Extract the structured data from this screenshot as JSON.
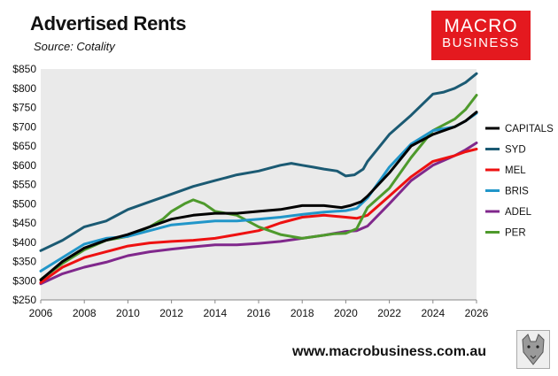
{
  "header": {
    "title": "Advertised Rents",
    "subtitle": "Source: Cotality"
  },
  "logo": {
    "line1": "MACRO",
    "line2": "BUSINESS"
  },
  "footer": {
    "url": "www.macrobusiness.com.au"
  },
  "colors": {
    "background_plot": "#eaeaea",
    "CAPITALS": "#000000",
    "SYD": "#1b5a73",
    "MEL": "#ee1111",
    "BRIS": "#2196c9",
    "ADEL": "#80288c",
    "PER": "#4e9a2c",
    "logo": "#e4191f"
  },
  "chart_data": {
    "type": "line",
    "title": "Advertised Rents",
    "xlabel": "",
    "ylabel": "",
    "xlim": [
      2006,
      2026
    ],
    "ylim": [
      250,
      850
    ],
    "x_ticks": [
      2006,
      2008,
      2010,
      2012,
      2014,
      2016,
      2018,
      2020,
      2022,
      2024,
      2026
    ],
    "y_ticks": [
      250,
      300,
      350,
      400,
      450,
      500,
      550,
      600,
      650,
      700,
      750,
      800,
      850
    ],
    "y_tick_labels": [
      "$250",
      "$300",
      "$350",
      "$400",
      "$450",
      "$500",
      "$550",
      "$600",
      "$650",
      "$700",
      "$750",
      "$800",
      "$850"
    ],
    "legend_position": "right",
    "grid": false,
    "series": [
      {
        "name": "CAPITALS",
        "x": [
          2006,
          2007,
          2008,
          2009,
          2010,
          2011,
          2012,
          2013,
          2014,
          2015,
          2016,
          2017,
          2018,
          2019,
          2019.8,
          2020.2,
          2020.7,
          2021,
          2022,
          2023,
          2024,
          2025,
          2025.5,
          2026
        ],
        "values": [
          302,
          350,
          385,
          405,
          420,
          440,
          460,
          470,
          475,
          475,
          480,
          485,
          495,
          495,
          490,
          495,
          505,
          520,
          580,
          650,
          680,
          700,
          715,
          738
        ]
      },
      {
        "name": "SYD",
        "x": [
          2006,
          2007,
          2008,
          2009,
          2010,
          2011,
          2012,
          2013,
          2014,
          2015,
          2016,
          2017,
          2017.5,
          2018,
          2018.5,
          2019,
          2019.6,
          2020,
          2020.4,
          2020.8,
          2021,
          2022,
          2023,
          2024,
          2024.5,
          2025,
          2025.5,
          2026
        ],
        "values": [
          378,
          405,
          440,
          455,
          485,
          505,
          525,
          545,
          560,
          575,
          585,
          600,
          605,
          600,
          595,
          590,
          585,
          572,
          575,
          590,
          610,
          680,
          730,
          785,
          790,
          800,
          815,
          838
        ]
      },
      {
        "name": "MEL",
        "x": [
          2006,
          2007,
          2008,
          2009,
          2010,
          2011,
          2012,
          2013,
          2014,
          2015,
          2016,
          2017,
          2018,
          2019,
          2020,
          2020.5,
          2021,
          2022,
          2023,
          2024,
          2025,
          2025.5,
          2026
        ],
        "values": [
          295,
          335,
          360,
          375,
          390,
          398,
          402,
          405,
          410,
          420,
          430,
          450,
          465,
          470,
          465,
          462,
          470,
          520,
          570,
          610,
          625,
          635,
          642
        ]
      },
      {
        "name": "BRIS",
        "x": [
          2006,
          2007,
          2008,
          2009,
          2010,
          2011,
          2012,
          2013,
          2014,
          2015,
          2016,
          2017,
          2018,
          2019,
          2020,
          2020.5,
          2021,
          2022,
          2023,
          2024,
          2025,
          2025.5,
          2026
        ],
        "values": [
          325,
          360,
          395,
          410,
          415,
          430,
          445,
          450,
          455,
          455,
          460,
          465,
          472,
          478,
          482,
          488,
          515,
          595,
          655,
          690,
          700,
          715,
          735
        ]
      },
      {
        "name": "ADEL",
        "x": [
          2006,
          2007,
          2008,
          2009,
          2010,
          2011,
          2012,
          2013,
          2014,
          2015,
          2016,
          2017,
          2018,
          2019,
          2020,
          2020.5,
          2021,
          2022,
          2023,
          2024,
          2025,
          2025.5,
          2026
        ],
        "values": [
          292,
          318,
          335,
          348,
          365,
          375,
          382,
          388,
          393,
          393,
          397,
          402,
          410,
          418,
          428,
          430,
          442,
          500,
          560,
          600,
          625,
          640,
          658
        ]
      },
      {
        "name": "PER",
        "x": [
          2006,
          2007,
          2008,
          2009,
          2010,
          2011,
          2011.6,
          2012,
          2012.6,
          2013,
          2013.5,
          2014,
          2015,
          2015.5,
          2016,
          2017,
          2018,
          2019,
          2019.5,
          2020,
          2020.5,
          2021,
          2022,
          2023,
          2024,
          2025,
          2025.5,
          2026
        ],
        "values": [
          303,
          345,
          380,
          405,
          415,
          440,
          460,
          480,
          500,
          510,
          500,
          480,
          470,
          455,
          440,
          420,
          410,
          418,
          422,
          423,
          435,
          490,
          540,
          620,
          690,
          720,
          745,
          782
        ]
      }
    ]
  }
}
